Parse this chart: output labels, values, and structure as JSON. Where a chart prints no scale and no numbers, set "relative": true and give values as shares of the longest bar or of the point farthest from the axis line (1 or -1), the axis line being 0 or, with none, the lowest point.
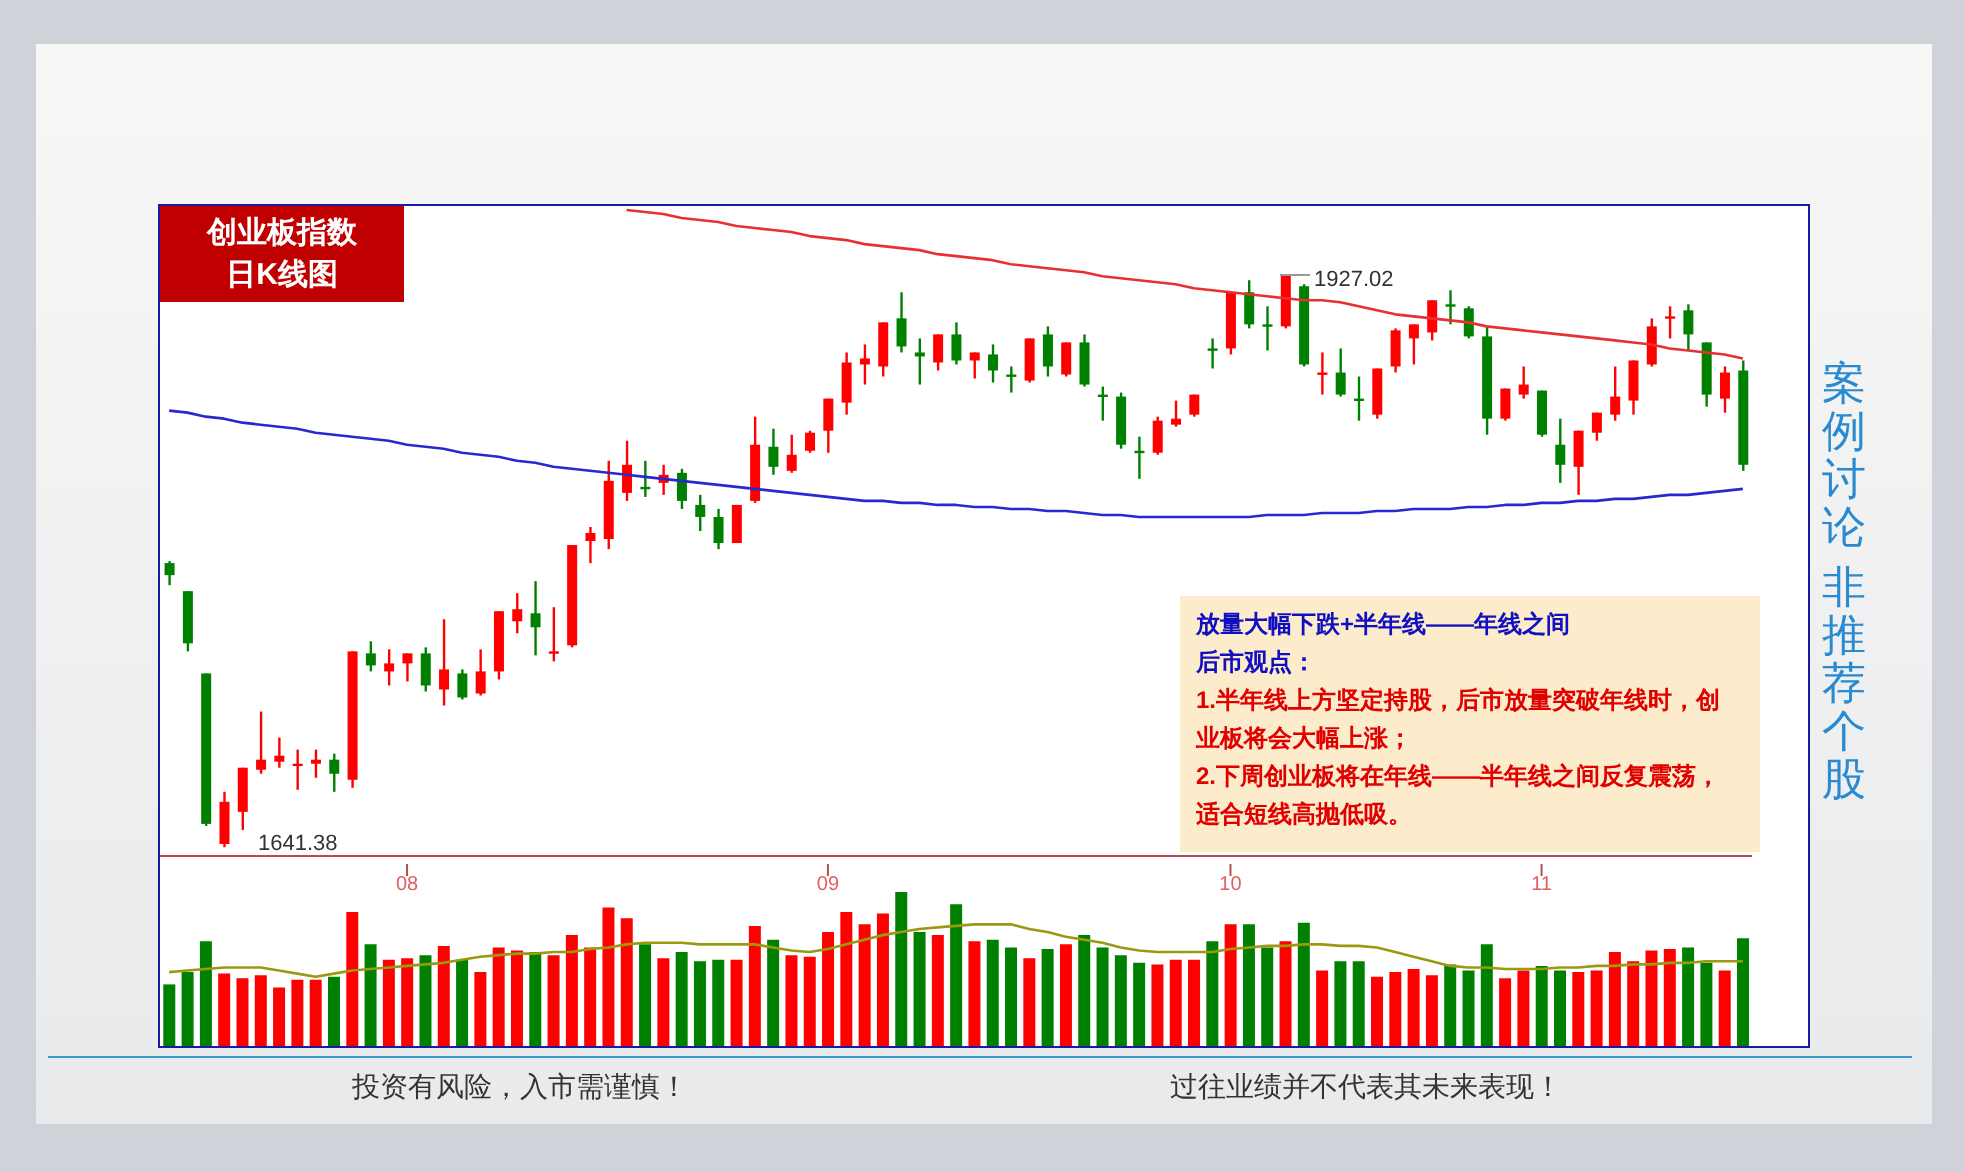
{
  "chart_data": [
    {
      "type": "candlestick",
      "title": "创业板指数",
      "subtitle": "日K线图",
      "categories": [
        null,
        null,
        null,
        null,
        null,
        null,
        null,
        null,
        null,
        null,
        null,
        null,
        null,
        "08",
        null,
        null,
        null,
        null,
        null,
        null,
        null,
        null,
        null,
        null,
        null,
        null,
        null,
        null,
        null,
        null,
        null,
        null,
        null,
        null,
        null,
        null,
        "09",
        null,
        null,
        null,
        null,
        null,
        null,
        null,
        null,
        null,
        null,
        null,
        null,
        null,
        null,
        null,
        null,
        null,
        null,
        null,
        null,
        null,
        "10",
        null,
        null,
        null,
        null,
        null,
        null,
        null,
        null,
        null,
        null,
        null,
        null,
        null,
        null,
        null,
        null,
        "11",
        null,
        null,
        null,
        null,
        null,
        null,
        null,
        null,
        null,
        null,
        null
      ],
      "ohlc": [
        [
          1783,
          1784,
          1772,
          1777
        ],
        [
          1769,
          1769,
          1739,
          1743
        ],
        [
          1728,
          1728,
          1652,
          1653
        ],
        [
          1643,
          1669,
          1641.38,
          1664
        ],
        [
          1659,
          1681,
          1650,
          1681
        ],
        [
          1680,
          1709,
          1678,
          1685
        ],
        [
          1684,
          1696,
          1681,
          1687
        ],
        [
          1682,
          1690,
          1670,
          1683
        ],
        [
          1683,
          1690,
          1676,
          1685
        ],
        [
          1685,
          1688,
          1669,
          1678
        ],
        [
          1675,
          1739,
          1671,
          1739
        ],
        [
          1738,
          1744,
          1729,
          1732
        ],
        [
          1729,
          1740,
          1722,
          1733
        ],
        [
          1733,
          1738,
          1724,
          1738
        ],
        [
          1738,
          1741,
          1719,
          1722
        ],
        [
          1720,
          1755,
          1712,
          1730
        ],
        [
          1728,
          1730,
          1715,
          1716
        ],
        [
          1718,
          1740,
          1717,
          1729
        ],
        [
          1729,
          1759,
          1725,
          1759
        ],
        [
          1754,
          1768,
          1748,
          1760
        ],
        [
          1758,
          1774,
          1737,
          1751
        ],
        [
          1738,
          1761,
          1734,
          1739
        ],
        [
          1742,
          1792,
          1741,
          1792
        ],
        [
          1794,
          1801,
          1783,
          1798
        ],
        [
          1795,
          1834,
          1790,
          1824
        ],
        [
          1818,
          1844,
          1814,
          1832
        ],
        [
          1821,
          1834,
          1816,
          1820
        ],
        [
          1823,
          1832,
          1817,
          1827
        ],
        [
          1828,
          1830,
          1810,
          1814
        ],
        [
          1812,
          1817,
          1799,
          1806
        ],
        [
          1806,
          1810,
          1790,
          1793
        ],
        [
          1793,
          1812,
          1793,
          1812
        ],
        [
          1814,
          1856,
          1813,
          1842
        ],
        [
          1841,
          1850,
          1827,
          1831
        ],
        [
          1829,
          1847,
          1828,
          1837
        ],
        [
          1839,
          1849,
          1838,
          1848
        ],
        [
          1849,
          1865,
          1838,
          1865
        ],
        [
          1863,
          1888,
          1857,
          1883
        ],
        [
          1882,
          1892,
          1872,
          1885
        ],
        [
          1881,
          1903,
          1876,
          1903
        ],
        [
          1905,
          1918,
          1888,
          1891
        ],
        [
          1888,
          1895,
          1872,
          1886
        ],
        [
          1883,
          1897,
          1879,
          1897
        ],
        [
          1897,
          1903,
          1882,
          1884
        ],
        [
          1884,
          1888,
          1875,
          1888
        ],
        [
          1887,
          1892,
          1873,
          1879
        ],
        [
          1877,
          1881,
          1868,
          1876
        ],
        [
          1874,
          1895,
          1873,
          1895
        ],
        [
          1897,
          1901,
          1876,
          1881
        ],
        [
          1877,
          1893,
          1876,
          1893
        ],
        [
          1893,
          1897,
          1871,
          1872
        ],
        [
          1867,
          1871,
          1854,
          1866
        ],
        [
          1866,
          1868,
          1840,
          1842
        ],
        [
          1839,
          1846,
          1825,
          1838
        ],
        [
          1838,
          1856,
          1837,
          1854
        ],
        [
          1852,
          1864,
          1851,
          1855
        ],
        [
          1857,
          1867,
          1856,
          1867
        ],
        [
          1890,
          1895,
          1880,
          1889
        ],
        [
          1890,
          1918,
          1887,
          1918
        ],
        [
          1918,
          1924,
          1900,
          1902
        ],
        [
          1902,
          1911,
          1889,
          1901
        ],
        [
          1901,
          1927.02,
          1900,
          1927
        ],
        [
          1921,
          1922,
          1881,
          1882
        ],
        [
          1877,
          1888,
          1867,
          1878
        ],
        [
          1878,
          1890,
          1866,
          1867
        ],
        [
          1865,
          1876,
          1854,
          1864
        ],
        [
          1857,
          1880,
          1855,
          1880
        ],
        [
          1881,
          1900,
          1878,
          1899
        ],
        [
          1895,
          1902,
          1882,
          1902
        ],
        [
          1898,
          1914,
          1894,
          1914
        ],
        [
          1912,
          1919,
          1902,
          1911
        ],
        [
          1910,
          1911,
          1895,
          1896
        ],
        [
          1896,
          1901,
          1847,
          1855
        ],
        [
          1855,
          1870,
          1854,
          1870
        ],
        [
          1867,
          1881,
          1865,
          1872
        ],
        [
          1869,
          1869,
          1846,
          1847
        ],
        [
          1842,
          1855,
          1823,
          1832
        ],
        [
          1831,
          1849,
          1817,
          1849
        ],
        [
          1848,
          1858,
          1844,
          1858
        ],
        [
          1857,
          1881,
          1854,
          1866
        ],
        [
          1864,
          1884,
          1857,
          1884
        ],
        [
          1882,
          1905,
          1881,
          1901
        ],
        [
          1905,
          1911,
          1895,
          1906
        ],
        [
          1909,
          1912,
          1889,
          1897
        ],
        [
          1893,
          1893,
          1861,
          1867
        ],
        [
          1865,
          1881,
          1858,
          1878
        ],
        [
          1879,
          1884,
          1829,
          1832
        ]
      ],
      "colors": [
        "#008000",
        "#008000",
        "#008000",
        "#ff0000",
        "#ff0000",
        "#ff0000",
        "#ff0000",
        "#ff0000",
        "#ff0000",
        "#008000",
        "#ff0000",
        "#008000",
        "#ff0000",
        "#ff0000",
        "#008000",
        "#ff0000",
        "#008000",
        "#ff0000",
        "#ff0000",
        "#ff0000",
        "#008000",
        "#ff0000",
        "#ff0000",
        "#ff0000",
        "#ff0000",
        "#ff0000",
        "#008000",
        "#ff0000",
        "#008000",
        "#008000",
        "#008000",
        "#ff0000",
        "#ff0000",
        "#008000",
        "#ff0000",
        "#ff0000",
        "#ff0000",
        "#ff0000",
        "#ff0000",
        "#ff0000",
        "#008000",
        "#008000",
        "#ff0000",
        "#008000",
        "#ff0000",
        "#008000",
        "#008000",
        "#ff0000",
        "#008000",
        "#ff0000",
        "#008000",
        "#008000",
        "#008000",
        "#008000",
        "#ff0000",
        "#ff0000",
        "#ff0000",
        "#008000",
        "#ff0000",
        "#008000",
        "#008000",
        "#ff0000",
        "#008000",
        "#ff0000",
        "#008000",
        "#008000",
        "#ff0000",
        "#ff0000",
        "#ff0000",
        "#ff0000",
        "#008000",
        "#008000",
        "#008000",
        "#ff0000",
        "#ff0000",
        "#008000",
        "#008000",
        "#ff0000",
        "#ff0000",
        "#ff0000",
        "#ff0000",
        "#ff0000",
        "#ff0000",
        "#008000",
        "#008000",
        "#ff0000",
        "#008000"
      ],
      "series": [
        {
          "type": "line",
          "color": "#e83030",
          "values": [
            null,
            null,
            null,
            null,
            null,
            null,
            null,
            null,
            null,
            null,
            null,
            null,
            null,
            null,
            null,
            null,
            null,
            null,
            null,
            null,
            null,
            null,
            null,
            null,
            null,
            1959,
            1958,
            1957,
            1955,
            1954,
            1953,
            1951,
            1950,
            1949,
            1948,
            1946,
            1945,
            1944,
            1942,
            1941,
            1940,
            1939,
            1937,
            1936,
            1935,
            1934,
            1932,
            1931,
            1930,
            1929,
            1928,
            1926,
            1925,
            1924,
            1923,
            1922,
            1920,
            1919,
            1918,
            1917,
            1916,
            1915,
            1914,
            1914,
            1913,
            1911,
            1909,
            1907,
            1906,
            1905,
            1904,
            1903,
            1901,
            1900,
            1899,
            1898,
            1897,
            1896,
            1895,
            1894,
            1893,
            1892,
            1890,
            1889,
            1888,
            1887,
            1885
          ]
        },
        {
          "type": "line",
          "color": "#2828d0",
          "values": [
            1859,
            1858,
            1856,
            1855,
            1853,
            1852,
            1851,
            1850,
            1848,
            1847,
            1846,
            1845,
            1844,
            1842,
            1841,
            1840,
            1838,
            1837,
            1836,
            1834,
            1833,
            1831,
            1830,
            1829,
            1828,
            1827,
            1826,
            1825,
            1824,
            1823,
            1822,
            1821,
            1820,
            1819,
            1818,
            1817,
            1816,
            1815,
            1814,
            1814,
            1813,
            1813,
            1812,
            1812,
            1811,
            1811,
            1810,
            1810,
            1809,
            1809,
            1808,
            1807,
            1807,
            1806,
            1806,
            1806,
            1806,
            1806,
            1806,
            1806,
            1807,
            1807,
            1807,
            1808,
            1808,
            1808,
            1809,
            1809,
            1810,
            1810,
            1810,
            1811,
            1811,
            1812,
            1812,
            1813,
            1813,
            1814,
            1814,
            1815,
            1815,
            1816,
            1817,
            1817,
            1818,
            1819,
            1820
          ]
        }
      ],
      "ylim": [
        1637,
        1961
      ],
      "tick_labels": "x",
      "annotations": [
        "放量大幅下跌+半年线——年线之间",
        "后市观点：",
        "1.半年线上方坚定持股，后市放量突破年线时，创业板将会大幅上涨；",
        "2.下周创业板将在年线——半年线之间反复震荡，适合短线高抛低吸。",
        "1927.02",
        "1641.38",
        "案例讨论",
        "非推荐个股",
        "投资有风险，入市需谨慎！",
        "过往业绩并不代表其未来表现！"
      ]
    },
    {
      "type": "bar",
      "relative": true,
      "tick_labels": false,
      "categories": [
        null,
        null,
        null,
        null,
        null,
        null,
        null,
        null,
        null,
        null,
        null,
        null,
        null,
        null,
        null,
        null,
        null,
        null,
        null,
        null,
        null,
        null,
        null,
        null,
        null,
        null,
        null,
        null,
        null,
        null,
        null,
        null,
        null,
        null,
        null,
        null,
        null,
        null,
        null,
        null,
        null,
        null,
        null,
        null,
        null,
        null,
        null,
        null,
        null,
        null,
        null,
        null,
        null,
        null,
        null,
        null,
        null,
        null,
        null,
        null,
        null,
        null,
        null,
        null,
        null,
        null,
        null,
        null,
        null,
        null,
        null,
        null,
        null,
        null,
        null,
        null,
        null,
        null,
        null,
        null,
        null,
        null,
        null,
        null,
        null,
        null,
        null
      ],
      "series": [
        {
          "type": "bar",
          "values": [
            0.4,
            0.48,
            0.68,
            0.47,
            0.44,
            0.46,
            0.38,
            0.43,
            0.43,
            0.45,
            0.87,
            0.66,
            0.56,
            0.57,
            0.59,
            0.65,
            0.56,
            0.48,
            0.64,
            0.62,
            0.61,
            0.59,
            0.72,
            0.64,
            0.9,
            0.83,
            0.66,
            0.57,
            0.61,
            0.55,
            0.56,
            0.56,
            0.78,
            0.69,
            0.59,
            0.58,
            0.74,
            0.87,
            0.79,
            0.86,
            1,
            0.74,
            0.72,
            0.92,
            0.68,
            0.69,
            0.64,
            0.57,
            0.63,
            0.66,
            0.72,
            0.64,
            0.59,
            0.54,
            0.53,
            0.56,
            0.56,
            0.68,
            0.79,
            0.79,
            0.64,
            0.68,
            0.8,
            0.49,
            0.55,
            0.55,
            0.45,
            0.48,
            0.5,
            0.46,
            0.53,
            0.49,
            0.66,
            0.44,
            0.49,
            0.52,
            0.49,
            0.48,
            0.49,
            0.61,
            0.55,
            0.62,
            0.63,
            0.64,
            0.54,
            0.49,
            0.7
          ],
          "colors": [
            "#008000",
            "#008000",
            "#008000",
            "#ff0000",
            "#ff0000",
            "#ff0000",
            "#ff0000",
            "#ff0000",
            "#ff0000",
            "#008000",
            "#ff0000",
            "#008000",
            "#ff0000",
            "#ff0000",
            "#008000",
            "#ff0000",
            "#008000",
            "#ff0000",
            "#ff0000",
            "#ff0000",
            "#008000",
            "#ff0000",
            "#ff0000",
            "#ff0000",
            "#ff0000",
            "#ff0000",
            "#008000",
            "#ff0000",
            "#008000",
            "#008000",
            "#008000",
            "#ff0000",
            "#ff0000",
            "#008000",
            "#ff0000",
            "#ff0000",
            "#ff0000",
            "#ff0000",
            "#ff0000",
            "#ff0000",
            "#008000",
            "#008000",
            "#ff0000",
            "#008000",
            "#ff0000",
            "#008000",
            "#008000",
            "#ff0000",
            "#008000",
            "#ff0000",
            "#008000",
            "#008000",
            "#008000",
            "#008000",
            "#ff0000",
            "#ff0000",
            "#ff0000",
            "#008000",
            "#ff0000",
            "#008000",
            "#008000",
            "#ff0000",
            "#008000",
            "#ff0000",
            "#008000",
            "#008000",
            "#ff0000",
            "#ff0000",
            "#ff0000",
            "#ff0000",
            "#008000",
            "#008000",
            "#008000",
            "#ff0000",
            "#ff0000",
            "#008000",
            "#008000",
            "#ff0000",
            "#ff0000",
            "#ff0000",
            "#ff0000",
            "#ff0000",
            "#ff0000",
            "#008000",
            "#008000",
            "#ff0000",
            "#008000"
          ]
        },
        {
          "type": "line",
          "color": "#9a9a10",
          "values": [
            0.48,
            0.49,
            0.5,
            0.51,
            0.51,
            0.51,
            0.49,
            0.47,
            0.45,
            0.47,
            0.49,
            0.5,
            0.51,
            0.52,
            0.53,
            0.54,
            0.56,
            0.58,
            0.59,
            0.6,
            0.6,
            0.61,
            0.61,
            0.63,
            0.64,
            0.66,
            0.67,
            0.67,
            0.67,
            0.66,
            0.66,
            0.66,
            0.66,
            0.64,
            0.62,
            0.61,
            0.63,
            0.66,
            0.69,
            0.72,
            0.74,
            0.76,
            0.77,
            0.78,
            0.79,
            0.79,
            0.79,
            0.76,
            0.74,
            0.71,
            0.69,
            0.67,
            0.64,
            0.62,
            0.61,
            0.61,
            0.61,
            0.61,
            0.63,
            0.64,
            0.65,
            0.65,
            0.66,
            0.66,
            0.65,
            0.65,
            0.64,
            0.61,
            0.58,
            0.55,
            0.52,
            0.51,
            0.51,
            0.5,
            0.5,
            0.5,
            0.51,
            0.51,
            0.52,
            0.52,
            0.53,
            0.53,
            0.54,
            0.54,
            0.55,
            0.55,
            0.55
          ]
        }
      ]
    }
  ]
}
